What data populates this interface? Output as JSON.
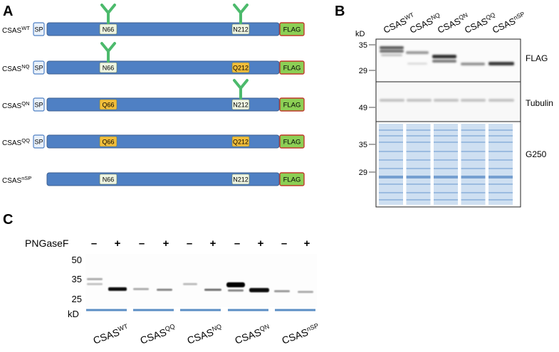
{
  "panels": {
    "a": {
      "letter": "A",
      "constructs": [
        {
          "name": "CSAS",
          "sup": "WT",
          "sp": "SP",
          "site1": "N66",
          "site2": "N212",
          "glyco1": true,
          "glyco2": true,
          "tag": "FLAG"
        },
        {
          "name": "CSAS",
          "sup": "NQ",
          "sp": "SP",
          "site1": "N66",
          "site2": "Q212",
          "glyco1": true,
          "glyco2": false,
          "tag": "FLAG"
        },
        {
          "name": "CSAS",
          "sup": "QN",
          "sp": "SP",
          "site1": "Q66",
          "site2": "N212",
          "glyco1": false,
          "glyco2": true,
          "tag": "FLAG"
        },
        {
          "name": "CSAS",
          "sup": "QQ",
          "sp": "SP",
          "site1": "Q66",
          "site2": "Q212",
          "glyco1": false,
          "glyco2": false,
          "tag": "FLAG"
        },
        {
          "name": "CSAS",
          "sup": "nSP",
          "sp": "",
          "site1": "N66",
          "site2": "N212",
          "glyco1": false,
          "glyco2": false,
          "tag": "FLAG"
        }
      ],
      "colors": {
        "bar": "#4f80c4",
        "bar_stroke": "#3c5f90",
        "asn": "#eef5e2",
        "gln": "#f2be3a",
        "flag": "#8ccf55",
        "flag_stroke": "#c0392b",
        "glycan": "#4cba6c",
        "sp_fill": "#e9f1fb"
      }
    },
    "b": {
      "letter": "B",
      "lanes": [
        {
          "name": "CSAS",
          "sup": "WT"
        },
        {
          "name": "CSAS",
          "sup": "NQ"
        },
        {
          "name": "CSAS",
          "sup": "QN"
        },
        {
          "name": "CSAS",
          "sup": "QQ"
        },
        {
          "name": "CSAS",
          "sup": "nSP"
        }
      ],
      "kd_label": "kD",
      "blots": [
        {
          "label": "FLAG",
          "markers": [
            "35",
            "29"
          ]
        },
        {
          "label": "Tubulin",
          "markers": [
            "49"
          ]
        },
        {
          "label": "G250",
          "markers": [
            "35",
            "29"
          ]
        }
      ]
    },
    "c": {
      "letter": "C",
      "treatment_label": "PNGaseF",
      "signs": [
        "–",
        "+",
        "–",
        "+",
        "–",
        "+",
        "–",
        "+",
        "–",
        "+"
      ],
      "markers": [
        "50",
        "35",
        "25"
      ],
      "kd_label": "kD",
      "groups": [
        {
          "name": "CSAS",
          "sup": "WT"
        },
        {
          "name": "CSAS",
          "sup": "QQ"
        },
        {
          "name": "CSAS",
          "sup": "NQ"
        },
        {
          "name": "CSAS",
          "sup": "QN"
        },
        {
          "name": "CSAS",
          "sup": "nSP"
        }
      ],
      "group_line_color": "#5b8ec4"
    }
  }
}
